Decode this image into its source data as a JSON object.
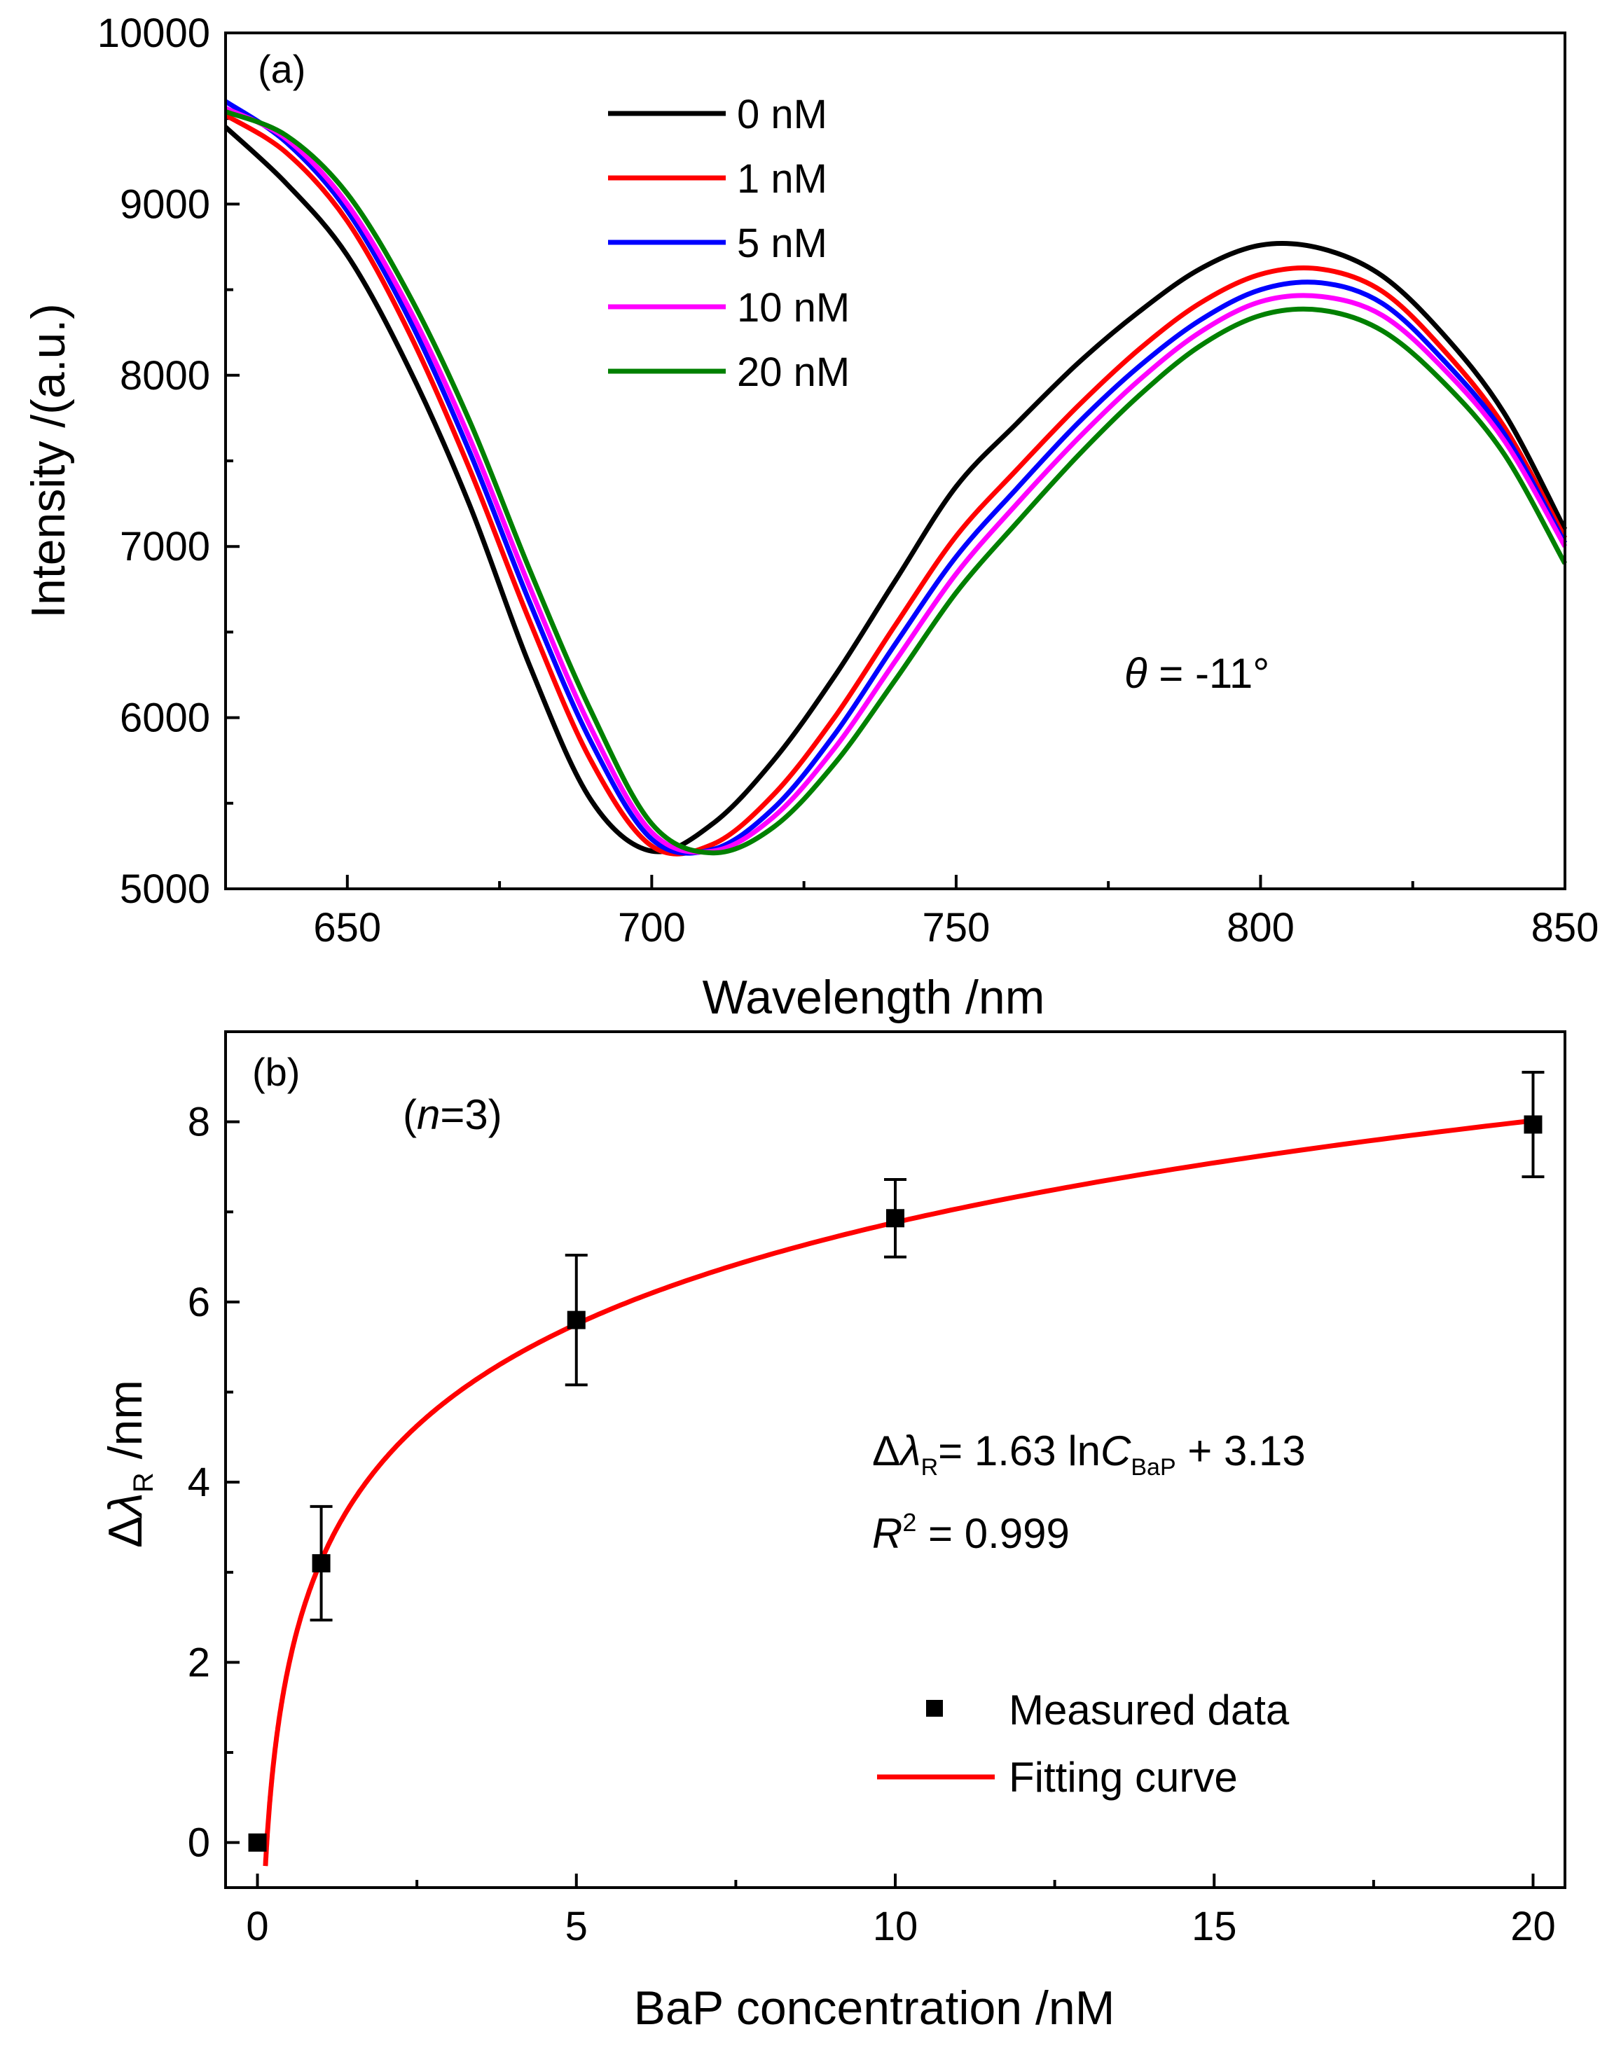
{
  "chart_data": [
    {
      "id": "a",
      "type": "line",
      "panel_label": "(a)",
      "xlabel": "Wavelength /nm",
      "ylabel": "Intensity /(a.u.)",
      "xlim": [
        630,
        850
      ],
      "ylim": [
        5000,
        10000
      ],
      "xticks": [
        650,
        700,
        750,
        800,
        850
      ],
      "yticks": [
        5000,
        6000,
        7000,
        8000,
        9000,
        10000
      ],
      "legend_position": "top-center",
      "annotation": {
        "symbol": "θ",
        "text": " = -11°"
      },
      "series": [
        {
          "name": "0 nM",
          "color": "#000000",
          "x": [
            630,
            640,
            650,
            660,
            670,
            680,
            690,
            700,
            710,
            720,
            730,
            740,
            750,
            760,
            770,
            780,
            790,
            800,
            810,
            820,
            830,
            840,
            850
          ],
          "y": [
            9450,
            9120,
            8700,
            8050,
            7250,
            6300,
            5520,
            5220,
            5380,
            5750,
            6240,
            6800,
            7350,
            7720,
            8070,
            8370,
            8620,
            8760,
            8740,
            8580,
            8240,
            7780,
            7100
          ]
        },
        {
          "name": "1 nM",
          "color": "#ff0000",
          "x": [
            630,
            640,
            650,
            660,
            670,
            680,
            690,
            700,
            710,
            720,
            730,
            740,
            750,
            760,
            770,
            780,
            790,
            800,
            810,
            820,
            830,
            840,
            850
          ],
          "y": [
            9520,
            9300,
            8900,
            8260,
            7460,
            6560,
            5750,
            5250,
            5260,
            5550,
            6000,
            6540,
            7060,
            7450,
            7820,
            8150,
            8420,
            8590,
            8620,
            8490,
            8150,
            7700,
            7050
          ]
        },
        {
          "name": "5 nM",
          "color": "#0000ff",
          "x": [
            630,
            640,
            650,
            660,
            670,
            680,
            690,
            700,
            710,
            720,
            730,
            740,
            750,
            760,
            770,
            780,
            790,
            800,
            810,
            820,
            830,
            840,
            850
          ],
          "y": [
            9600,
            9360,
            8960,
            8340,
            7560,
            6670,
            5860,
            5290,
            5230,
            5470,
            5900,
            6430,
            6940,
            7340,
            7720,
            8050,
            8320,
            8500,
            8540,
            8420,
            8090,
            7660,
            7020
          ]
        },
        {
          "name": "10 nM",
          "color": "#ff00ff",
          "x": [
            630,
            640,
            650,
            660,
            670,
            680,
            690,
            700,
            710,
            720,
            730,
            740,
            750,
            760,
            770,
            780,
            790,
            800,
            810,
            820,
            830,
            840,
            850
          ],
          "y": [
            9560,
            9380,
            9000,
            8400,
            7640,
            6760,
            5940,
            5330,
            5220,
            5420,
            5820,
            6330,
            6840,
            7250,
            7630,
            7970,
            8250,
            8430,
            8460,
            8350,
            8040,
            7620,
            7000
          ]
        },
        {
          "name": "20 nM",
          "color": "#008000",
          "x": [
            630,
            640,
            650,
            660,
            670,
            680,
            690,
            700,
            710,
            720,
            730,
            740,
            750,
            760,
            770,
            780,
            790,
            800,
            810,
            820,
            830,
            840,
            850
          ],
          "y": [
            9540,
            9400,
            9060,
            8480,
            7740,
            6860,
            6040,
            5380,
            5210,
            5360,
            5730,
            6220,
            6730,
            7140,
            7530,
            7880,
            8170,
            8350,
            8380,
            8260,
            7960,
            7540,
            6900
          ]
        }
      ]
    },
    {
      "id": "b",
      "type": "scatter",
      "panel_label": "(b)",
      "sample_note": {
        "open": "(",
        "italic": "n",
        "close": "=3)"
      },
      "xlabel": "BaP concentration /nM",
      "ylabel": {
        "prefix": "Δ",
        "symbol": "λ",
        "subscript": "R",
        "suffix": " /nm"
      },
      "xlim": [
        -0.5,
        20.5
      ],
      "ylim": [
        -0.5,
        9
      ],
      "xticks": [
        0,
        5,
        10,
        15,
        20
      ],
      "yticks": [
        0,
        2,
        4,
        6,
        8
      ],
      "legend_position": "bottom-right",
      "measured": {
        "name": "Measured data",
        "x": [
          0,
          1,
          5,
          10,
          20
        ],
        "y": [
          0,
          3.1,
          5.8,
          6.93,
          7.97
        ],
        "err": [
          0,
          0.63,
          0.72,
          0.43,
          0.58
        ]
      },
      "fit": {
        "name": "Fitting curve",
        "color": "#ff0000",
        "slope": 1.63,
        "intercept": 3.13,
        "x_range": [
          0.125,
          20
        ]
      },
      "equation": {
        "delta": "Δ",
        "lambda": "λ",
        "sub_r": "R",
        "mid": "= 1.63 ln",
        "c": "C",
        "sub_bap": "BaP",
        "tail": " + 3.13"
      },
      "r2": {
        "r": "R",
        "sup": "2",
        "tail": " = 0.999"
      }
    }
  ]
}
